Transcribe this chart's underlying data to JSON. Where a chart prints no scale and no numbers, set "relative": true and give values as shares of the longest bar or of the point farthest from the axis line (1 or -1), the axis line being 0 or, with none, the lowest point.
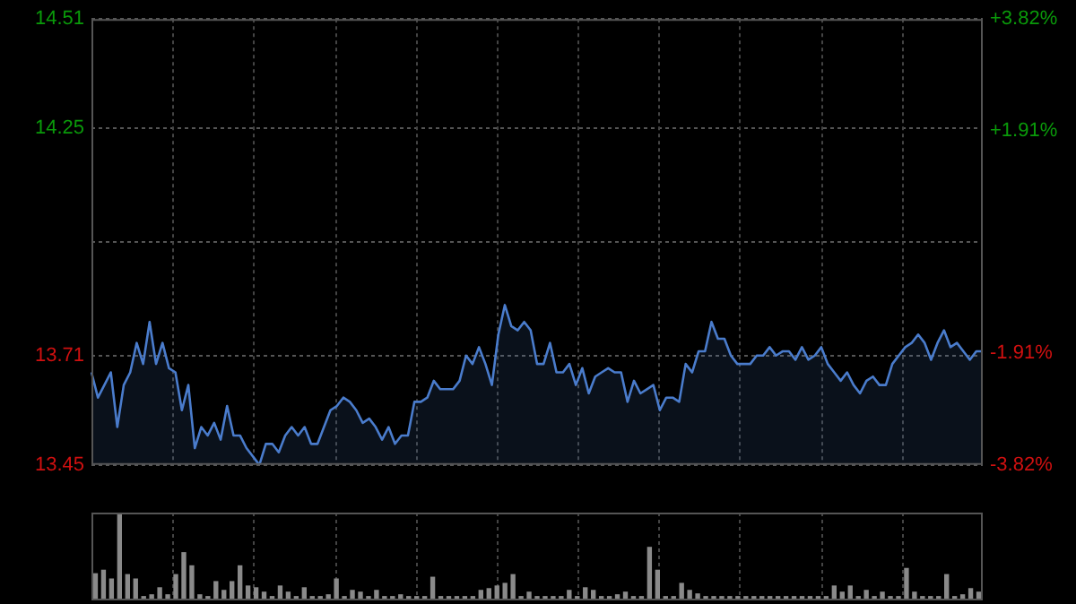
{
  "chart_data": [
    {
      "type": "area",
      "color": "#4a7ccc",
      "grid": true,
      "tick_labels": "y",
      "categories": [
        null,
        null,
        null,
        null,
        null,
        null,
        null,
        null,
        null,
        null,
        null,
        null,
        null,
        null,
        null,
        null,
        null,
        null,
        null,
        null,
        null,
        null,
        null,
        null,
        null,
        null,
        null,
        null,
        null,
        null,
        null,
        null,
        null,
        null,
        null,
        null,
        null,
        null,
        null,
        null,
        null,
        null,
        null,
        null,
        null,
        null,
        null,
        null,
        null,
        null,
        null,
        null,
        null,
        null,
        null,
        null,
        null,
        null,
        null,
        null,
        null,
        null,
        null,
        null,
        null,
        null,
        null,
        null,
        null,
        null,
        null,
        null,
        null,
        null,
        null,
        null,
        null,
        null,
        null,
        null,
        null,
        null,
        null,
        null,
        null,
        null,
        null,
        null,
        null,
        null,
        null,
        null,
        null,
        null,
        null,
        null,
        null,
        null,
        null,
        null,
        null,
        null,
        null,
        null,
        null,
        null,
        null,
        null,
        null,
        null,
        null,
        null,
        null,
        null,
        null,
        null,
        null,
        null,
        null,
        null,
        null,
        null,
        null,
        null,
        null,
        null,
        null,
        null,
        null,
        null,
        null,
        null,
        null,
        null,
        null,
        null,
        null,
        null,
        null
      ],
      "values": [
        13.67,
        13.61,
        13.64,
        13.67,
        13.54,
        13.64,
        13.67,
        13.74,
        13.69,
        13.79,
        13.69,
        13.74,
        13.68,
        13.67,
        13.58,
        13.64,
        13.49,
        13.54,
        13.52,
        13.55,
        13.51,
        13.59,
        13.52,
        13.52,
        13.49,
        13.47,
        13.45,
        13.5,
        13.5,
        13.48,
        13.52,
        13.54,
        13.52,
        13.54,
        13.5,
        13.5,
        13.54,
        13.58,
        13.59,
        13.61,
        13.6,
        13.58,
        13.55,
        13.56,
        13.54,
        13.51,
        13.54,
        13.5,
        13.52,
        13.52,
        13.6,
        13.6,
        13.61,
        13.65,
        13.63,
        13.63,
        13.63,
        13.65,
        13.71,
        13.69,
        13.73,
        13.69,
        13.64,
        13.76,
        13.83,
        13.78,
        13.77,
        13.79,
        13.77,
        13.69,
        13.69,
        13.74,
        13.67,
        13.67,
        13.69,
        13.64,
        13.68,
        13.62,
        13.66,
        13.67,
        13.68,
        13.67,
        13.67,
        13.6,
        13.65,
        13.62,
        13.63,
        13.64,
        13.58,
        13.61,
        13.61,
        13.6,
        13.69,
        13.67,
        13.72,
        13.72,
        13.79,
        13.75,
        13.75,
        13.71,
        13.69,
        13.69,
        13.69,
        13.71,
        13.71,
        13.73,
        13.71,
        13.72,
        13.72,
        13.7,
        13.73,
        13.7,
        13.71,
        13.73,
        13.69,
        13.67,
        13.65,
        13.67,
        13.64,
        13.62,
        13.65,
        13.66,
        13.64,
        13.64,
        13.69,
        13.71,
        13.73,
        13.74,
        13.76,
        13.74,
        13.7,
        13.74,
        13.77,
        13.73,
        13.74,
        13.72,
        13.7,
        13.72,
        13.72
      ],
      "ylim": [
        13.45,
        14.51
      ],
      "yticks": [
        13.45,
        13.71,
        {
          "value": 13.98,
          "label": null
        },
        14.25,
        14.51
      ],
      "y2lim": [
        -3.82,
        3.82
      ],
      "y2ticks": [
        {
          "value": -3.82,
          "label": "-3.82%"
        },
        {
          "value": -1.91,
          "label": "-1.91%"
        },
        {
          "value": 0,
          "label": null
        },
        {
          "value": 1.91,
          "label": "+1.91%"
        },
        {
          "value": 3.82,
          "label": "+3.82%"
        }
      ]
    },
    {
      "type": "bar",
      "color": "#8a8a8a",
      "grid": "x",
      "tick_labels": false,
      "relative": true,
      "categories": [
        null,
        null,
        null,
        null,
        null,
        null,
        null,
        null,
        null,
        null,
        null,
        null,
        null,
        null,
        null,
        null,
        null,
        null,
        null,
        null,
        null,
        null,
        null,
        null,
        null,
        null,
        null,
        null,
        null,
        null,
        null,
        null,
        null,
        null,
        null,
        null,
        null,
        null,
        null,
        null,
        null,
        null,
        null,
        null,
        null,
        null,
        null,
        null,
        null,
        null,
        null,
        null,
        null,
        null,
        null,
        null,
        null,
        null,
        null,
        null,
        null,
        null,
        null,
        null,
        null,
        null,
        null,
        null,
        null,
        null,
        null,
        null,
        null,
        null,
        null,
        null,
        null,
        null,
        null,
        null,
        null,
        null,
        null,
        null,
        null,
        null,
        null,
        null,
        null,
        null,
        null,
        null,
        null,
        null,
        null,
        null,
        null,
        null,
        null,
        null,
        null,
        null,
        null,
        null,
        null,
        null,
        null,
        null,
        null,
        null,
        null
      ],
      "values": [
        0.31,
        0.35,
        0.25,
        1,
        0.3,
        0.25,
        0.05,
        0.07,
        0.15,
        0.07,
        0.3,
        0.55,
        0.4,
        0.07,
        0.05,
        0.22,
        0.12,
        0.22,
        0.4,
        0.17,
        0.15,
        0.1,
        0.05,
        0.17,
        0.1,
        0.05,
        0.15,
        0.05,
        0.05,
        0.07,
        0.25,
        0.05,
        0.12,
        0.1,
        0.05,
        0.12,
        0.05,
        0.05,
        0.07,
        0.05,
        0.05,
        0.05,
        0.27,
        0.05,
        0.05,
        0.05,
        0.05,
        0.05,
        0.12,
        0.14,
        0.17,
        0.2,
        0.3,
        0.05,
        0.1,
        0.05,
        0.05,
        0.05,
        0.05,
        0.12,
        0.05,
        0.15,
        0.12,
        0.05,
        0.05,
        0.07,
        0.1,
        0.05,
        0.05,
        0.61,
        0.35,
        0.05,
        0.05,
        0.2,
        0.12,
        0.08,
        0.05,
        0.05,
        0.05,
        0.05,
        0.05,
        0.05,
        0.05,
        0.05,
        0.05,
        0.05,
        0.05,
        0.05,
        0.05,
        0.05,
        0.05,
        0.05,
        0.17,
        0.1,
        0.17,
        0.05,
        0.12,
        0.05,
        0.1,
        0.05,
        0.05,
        0.37,
        0.1,
        0.05,
        0.05,
        0.05,
        0.3,
        0.05,
        0.07,
        0.14,
        0.1
      ]
    }
  ]
}
